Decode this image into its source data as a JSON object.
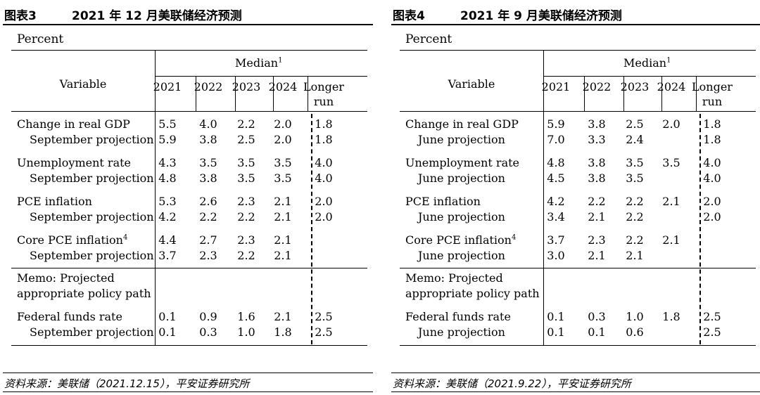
{
  "figures": [
    {
      "fig_num": "图表3",
      "title": "2021 年 12 月美联储经济预测",
      "unit": "Percent",
      "median_label": "Median",
      "median_sup": "1",
      "variable_label": "Variable",
      "years": [
        "2021",
        "2022",
        "2023",
        "2024"
      ],
      "longer_run_line1": "Longer",
      "longer_run_line2": "run",
      "rows": [
        {
          "label": "Change in real GDP",
          "sup": "",
          "indent": false,
          "values": [
            "5.5",
            "4.0",
            "2.2",
            "2.0"
          ],
          "lr": "1.8"
        },
        {
          "label": "September projection",
          "sup": "",
          "indent": true,
          "values": [
            "5.9",
            "3.8",
            "2.5",
            "2.0"
          ],
          "lr": "1.8"
        },
        {
          "label": "Unemployment rate",
          "sup": "",
          "indent": false,
          "values": [
            "4.3",
            "3.5",
            "3.5",
            "3.5"
          ],
          "lr": "4.0"
        },
        {
          "label": "September projection",
          "sup": "",
          "indent": true,
          "values": [
            "4.8",
            "3.8",
            "3.5",
            "3.5"
          ],
          "lr": "4.0"
        },
        {
          "label": "PCE inflation",
          "sup": "",
          "indent": false,
          "values": [
            "5.3",
            "2.6",
            "2.3",
            "2.1"
          ],
          "lr": "2.0"
        },
        {
          "label": "September projection",
          "sup": "",
          "indent": true,
          "values": [
            "4.2",
            "2.2",
            "2.2",
            "2.1"
          ],
          "lr": "2.0"
        },
        {
          "label": "Core PCE inflation",
          "sup": "4",
          "indent": false,
          "values": [
            "4.4",
            "2.7",
            "2.3",
            "2.1"
          ],
          "lr": ""
        },
        {
          "label": "September projection",
          "sup": "",
          "indent": true,
          "values": [
            "3.7",
            "2.3",
            "2.2",
            "2.1"
          ],
          "lr": ""
        }
      ],
      "memo_line1": "Memo: Projected",
      "memo_line2": "appropriate policy path",
      "ffr_rows": [
        {
          "label": "Federal funds rate",
          "indent": false,
          "values": [
            "0.1",
            "0.9",
            "1.6",
            "2.1"
          ],
          "lr": "2.5"
        },
        {
          "label": "September projection",
          "indent": true,
          "values": [
            "0.1",
            "0.3",
            "1.0",
            "1.8"
          ],
          "lr": "2.5"
        }
      ],
      "source": "资料来源：美联储（2021.12.15），平安证券研究所"
    },
    {
      "fig_num": "图表4",
      "title": "2021 年 9 月美联储经济预测",
      "unit": "Percent",
      "median_label": "Median",
      "median_sup": "1",
      "variable_label": "Variable",
      "years": [
        "2021",
        "2022",
        "2023",
        "2024"
      ],
      "longer_run_line1": "Longer",
      "longer_run_line2": "run",
      "rows": [
        {
          "label": "Change in real GDP",
          "sup": "",
          "indent": false,
          "values": [
            "5.9",
            "3.8",
            "2.5",
            "2.0"
          ],
          "lr": "1.8"
        },
        {
          "label": "June projection",
          "sup": "",
          "indent": true,
          "values": [
            "7.0",
            "3.3",
            "2.4",
            ""
          ],
          "lr": "1.8"
        },
        {
          "label": "Unemployment rate",
          "sup": "",
          "indent": false,
          "values": [
            "4.8",
            "3.8",
            "3.5",
            "3.5"
          ],
          "lr": "4.0"
        },
        {
          "label": "June projection",
          "sup": "",
          "indent": true,
          "values": [
            "4.5",
            "3.8",
            "3.5",
            ""
          ],
          "lr": "4.0"
        },
        {
          "label": "PCE inflation",
          "sup": "",
          "indent": false,
          "values": [
            "4.2",
            "2.2",
            "2.2",
            "2.1"
          ],
          "lr": "2.0"
        },
        {
          "label": "June projection",
          "sup": "",
          "indent": true,
          "values": [
            "3.4",
            "2.1",
            "2.2",
            ""
          ],
          "lr": "2.0"
        },
        {
          "label": "Core PCE inflation",
          "sup": "4",
          "indent": false,
          "values": [
            "3.7",
            "2.3",
            "2.2",
            "2.1"
          ],
          "lr": ""
        },
        {
          "label": "June projection",
          "sup": "",
          "indent": true,
          "values": [
            "3.0",
            "2.1",
            "2.1",
            ""
          ],
          "lr": ""
        }
      ],
      "memo_line1": "Memo: Projected",
      "memo_line2": "appropriate policy path",
      "ffr_rows": [
        {
          "label": "Federal funds rate",
          "indent": false,
          "values": [
            "0.1",
            "0.3",
            "1.0",
            "1.8"
          ],
          "lr": "2.5"
        },
        {
          "label": "June projection",
          "indent": true,
          "values": [
            "0.1",
            "0.1",
            "0.6",
            ""
          ],
          "lr": "2.5"
        }
      ],
      "source": "资料来源：美联储（2021.9.22），平安证券研究所"
    }
  ]
}
